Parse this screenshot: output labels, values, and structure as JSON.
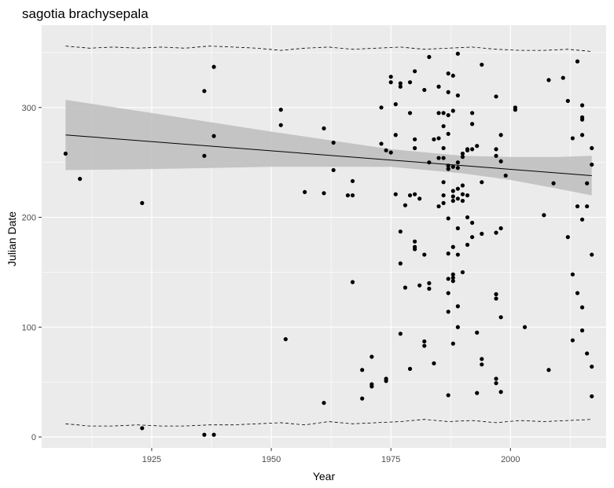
{
  "chart_data": {
    "type": "scatter",
    "title": "sagotia brachysepala",
    "xlabel": "Year",
    "ylabel": "Julian Date",
    "xlim": [
      1902,
      2020
    ],
    "ylim": [
      -10,
      375
    ],
    "x_ticks": [
      1925,
      1950,
      1975,
      2000
    ],
    "y_ticks": [
      0,
      100,
      200,
      300
    ],
    "grid": true,
    "background": "#ebebeb",
    "grid_color": "#ffffff",
    "point_color": "#000000",
    "ribbon_color": "#bdbdbd",
    "trend_line": {
      "x": [
        1907,
        2017
      ],
      "y": [
        275,
        238
      ]
    },
    "confidence_band": {
      "x": [
        1907,
        1925,
        1950,
        1975,
        1990,
        2000,
        2010,
        2017
      ],
      "lower": [
        243,
        244,
        246,
        246,
        240,
        234,
        226,
        220
      ],
      "upper": [
        307,
        295,
        278,
        262,
        256,
        255,
        255,
        256
      ]
    },
    "dashed_upper": {
      "x": [
        1907,
        1912,
        1917,
        1922,
        1927,
        1932,
        1937,
        1942,
        1947,
        1952,
        1957,
        1962,
        1967,
        1972,
        1977,
        1982,
        1987,
        1992,
        1997,
        2002,
        2007,
        2012,
        2017
      ],
      "y": [
        356,
        354,
        355,
        354,
        355,
        354,
        356,
        355,
        354,
        352,
        354,
        355,
        353,
        354,
        355,
        353,
        354,
        355,
        353,
        352,
        352,
        353,
        351
      ]
    },
    "dashed_lower": {
      "x": [
        1907,
        1912,
        1917,
        1922,
        1927,
        1932,
        1937,
        1942,
        1947,
        1952,
        1957,
        1962,
        1967,
        1972,
        1977,
        1982,
        1987,
        1992,
        1997,
        2002,
        2007,
        2012,
        2017
      ],
      "y": [
        12,
        10,
        10,
        11,
        10,
        10,
        11,
        11,
        12,
        13,
        11,
        14,
        12,
        13,
        14,
        16,
        14,
        15,
        13,
        15,
        14,
        15,
        16
      ]
    },
    "points": [
      [
        1907,
        258
      ],
      [
        1910,
        235
      ],
      [
        1923,
        213
      ],
      [
        1923,
        8
      ],
      [
        1936,
        315
      ],
      [
        1936,
        256
      ],
      [
        1936,
        2
      ],
      [
        1938,
        337
      ],
      [
        1938,
        274
      ],
      [
        1938,
        2
      ],
      [
        1952,
        298
      ],
      [
        1952,
        284
      ],
      [
        1953,
        89
      ],
      [
        1957,
        223
      ],
      [
        1961,
        281
      ],
      [
        1961,
        222
      ],
      [
        1961,
        31
      ],
      [
        1963,
        268
      ],
      [
        1963,
        243
      ],
      [
        1966,
        220
      ],
      [
        1967,
        233
      ],
      [
        1967,
        220
      ],
      [
        1967,
        141
      ],
      [
        1969,
        61
      ],
      [
        1969,
        35
      ],
      [
        1971,
        73
      ],
      [
        1971,
        48
      ],
      [
        1971,
        46
      ],
      [
        1973,
        300
      ],
      [
        1973,
        267
      ],
      [
        1974,
        261
      ],
      [
        1974,
        53
      ],
      [
        1974,
        51
      ],
      [
        1975,
        328
      ],
      [
        1975,
        323
      ],
      [
        1975,
        259
      ],
      [
        1976,
        303
      ],
      [
        1976,
        275
      ],
      [
        1976,
        221
      ],
      [
        1977,
        322
      ],
      [
        1977,
        319
      ],
      [
        1977,
        187
      ],
      [
        1977,
        158
      ],
      [
        1977,
        94
      ],
      [
        1978,
        211
      ],
      [
        1978,
        136
      ],
      [
        1979,
        323
      ],
      [
        1979,
        295
      ],
      [
        1979,
        220
      ],
      [
        1979,
        62
      ],
      [
        1980,
        333
      ],
      [
        1980,
        271
      ],
      [
        1980,
        263
      ],
      [
        1980,
        221
      ],
      [
        1980,
        178
      ],
      [
        1980,
        173
      ],
      [
        1980,
        171
      ],
      [
        1981,
        217
      ],
      [
        1981,
        138
      ],
      [
        1982,
        316
      ],
      [
        1982,
        166
      ],
      [
        1982,
        87
      ],
      [
        1982,
        83
      ],
      [
        1983,
        346
      ],
      [
        1983,
        250
      ],
      [
        1983,
        140
      ],
      [
        1983,
        135
      ],
      [
        1984,
        271
      ],
      [
        1984,
        67
      ],
      [
        1985,
        319
      ],
      [
        1985,
        295
      ],
      [
        1985,
        272
      ],
      [
        1985,
        254
      ],
      [
        1985,
        210
      ],
      [
        1986,
        295
      ],
      [
        1986,
        283
      ],
      [
        1986,
        263
      ],
      [
        1986,
        254
      ],
      [
        1986,
        232
      ],
      [
        1986,
        220
      ],
      [
        1986,
        213
      ],
      [
        1987,
        331
      ],
      [
        1987,
        314
      ],
      [
        1987,
        293
      ],
      [
        1987,
        276
      ],
      [
        1987,
        247
      ],
      [
        1987,
        244
      ],
      [
        1987,
        199
      ],
      [
        1987,
        167
      ],
      [
        1987,
        144
      ],
      [
        1987,
        131
      ],
      [
        1987,
        114
      ],
      [
        1987,
        38
      ],
      [
        1988,
        329
      ],
      [
        1988,
        297
      ],
      [
        1988,
        246
      ],
      [
        1988,
        224
      ],
      [
        1988,
        219
      ],
      [
        1988,
        215
      ],
      [
        1988,
        173
      ],
      [
        1988,
        148
      ],
      [
        1988,
        145
      ],
      [
        1988,
        142
      ],
      [
        1988,
        85
      ],
      [
        1989,
        349
      ],
      [
        1989,
        311
      ],
      [
        1989,
        250
      ],
      [
        1989,
        245
      ],
      [
        1989,
        226
      ],
      [
        1989,
        217
      ],
      [
        1989,
        190
      ],
      [
        1989,
        166
      ],
      [
        1989,
        100
      ],
      [
        1989,
        119
      ],
      [
        1990,
        258
      ],
      [
        1990,
        255
      ],
      [
        1990,
        229
      ],
      [
        1990,
        221
      ],
      [
        1990,
        215
      ],
      [
        1990,
        150
      ],
      [
        1991,
        262
      ],
      [
        1991,
        261
      ],
      [
        1991,
        220
      ],
      [
        1991,
        200
      ],
      [
        1991,
        175
      ],
      [
        1992,
        295
      ],
      [
        1992,
        285
      ],
      [
        1992,
        262
      ],
      [
        1992,
        195
      ],
      [
        1992,
        182
      ],
      [
        1993,
        265
      ],
      [
        1993,
        95
      ],
      [
        1993,
        40
      ],
      [
        1994,
        339
      ],
      [
        1994,
        232
      ],
      [
        1994,
        185
      ],
      [
        1994,
        71
      ],
      [
        1994,
        66
      ],
      [
        1997,
        310
      ],
      [
        1997,
        262
      ],
      [
        1997,
        256
      ],
      [
        1997,
        186
      ],
      [
        1997,
        130
      ],
      [
        1997,
        126
      ],
      [
        1997,
        53
      ],
      [
        1997,
        49
      ],
      [
        1998,
        275
      ],
      [
        1998,
        251
      ],
      [
        1998,
        190
      ],
      [
        1998,
        109
      ],
      [
        1998,
        41
      ],
      [
        1999,
        238
      ],
      [
        2001,
        300
      ],
      [
        2001,
        298
      ],
      [
        2003,
        100
      ],
      [
        2007,
        202
      ],
      [
        2008,
        325
      ],
      [
        2008,
        61
      ],
      [
        2009,
        231
      ],
      [
        2011,
        327
      ],
      [
        2012,
        306
      ],
      [
        2012,
        182
      ],
      [
        2013,
        272
      ],
      [
        2013,
        148
      ],
      [
        2013,
        88
      ],
      [
        2014,
        342
      ],
      [
        2014,
        210
      ],
      [
        2014,
        131
      ],
      [
        2015,
        302
      ],
      [
        2015,
        291
      ],
      [
        2015,
        289
      ],
      [
        2015,
        275
      ],
      [
        2015,
        198
      ],
      [
        2015,
        118
      ],
      [
        2015,
        97
      ],
      [
        2016,
        231
      ],
      [
        2016,
        210
      ],
      [
        2016,
        76
      ],
      [
        2017,
        263
      ],
      [
        2017,
        248
      ],
      [
        2017,
        166
      ],
      [
        2017,
        64
      ],
      [
        2017,
        37
      ]
    ]
  }
}
